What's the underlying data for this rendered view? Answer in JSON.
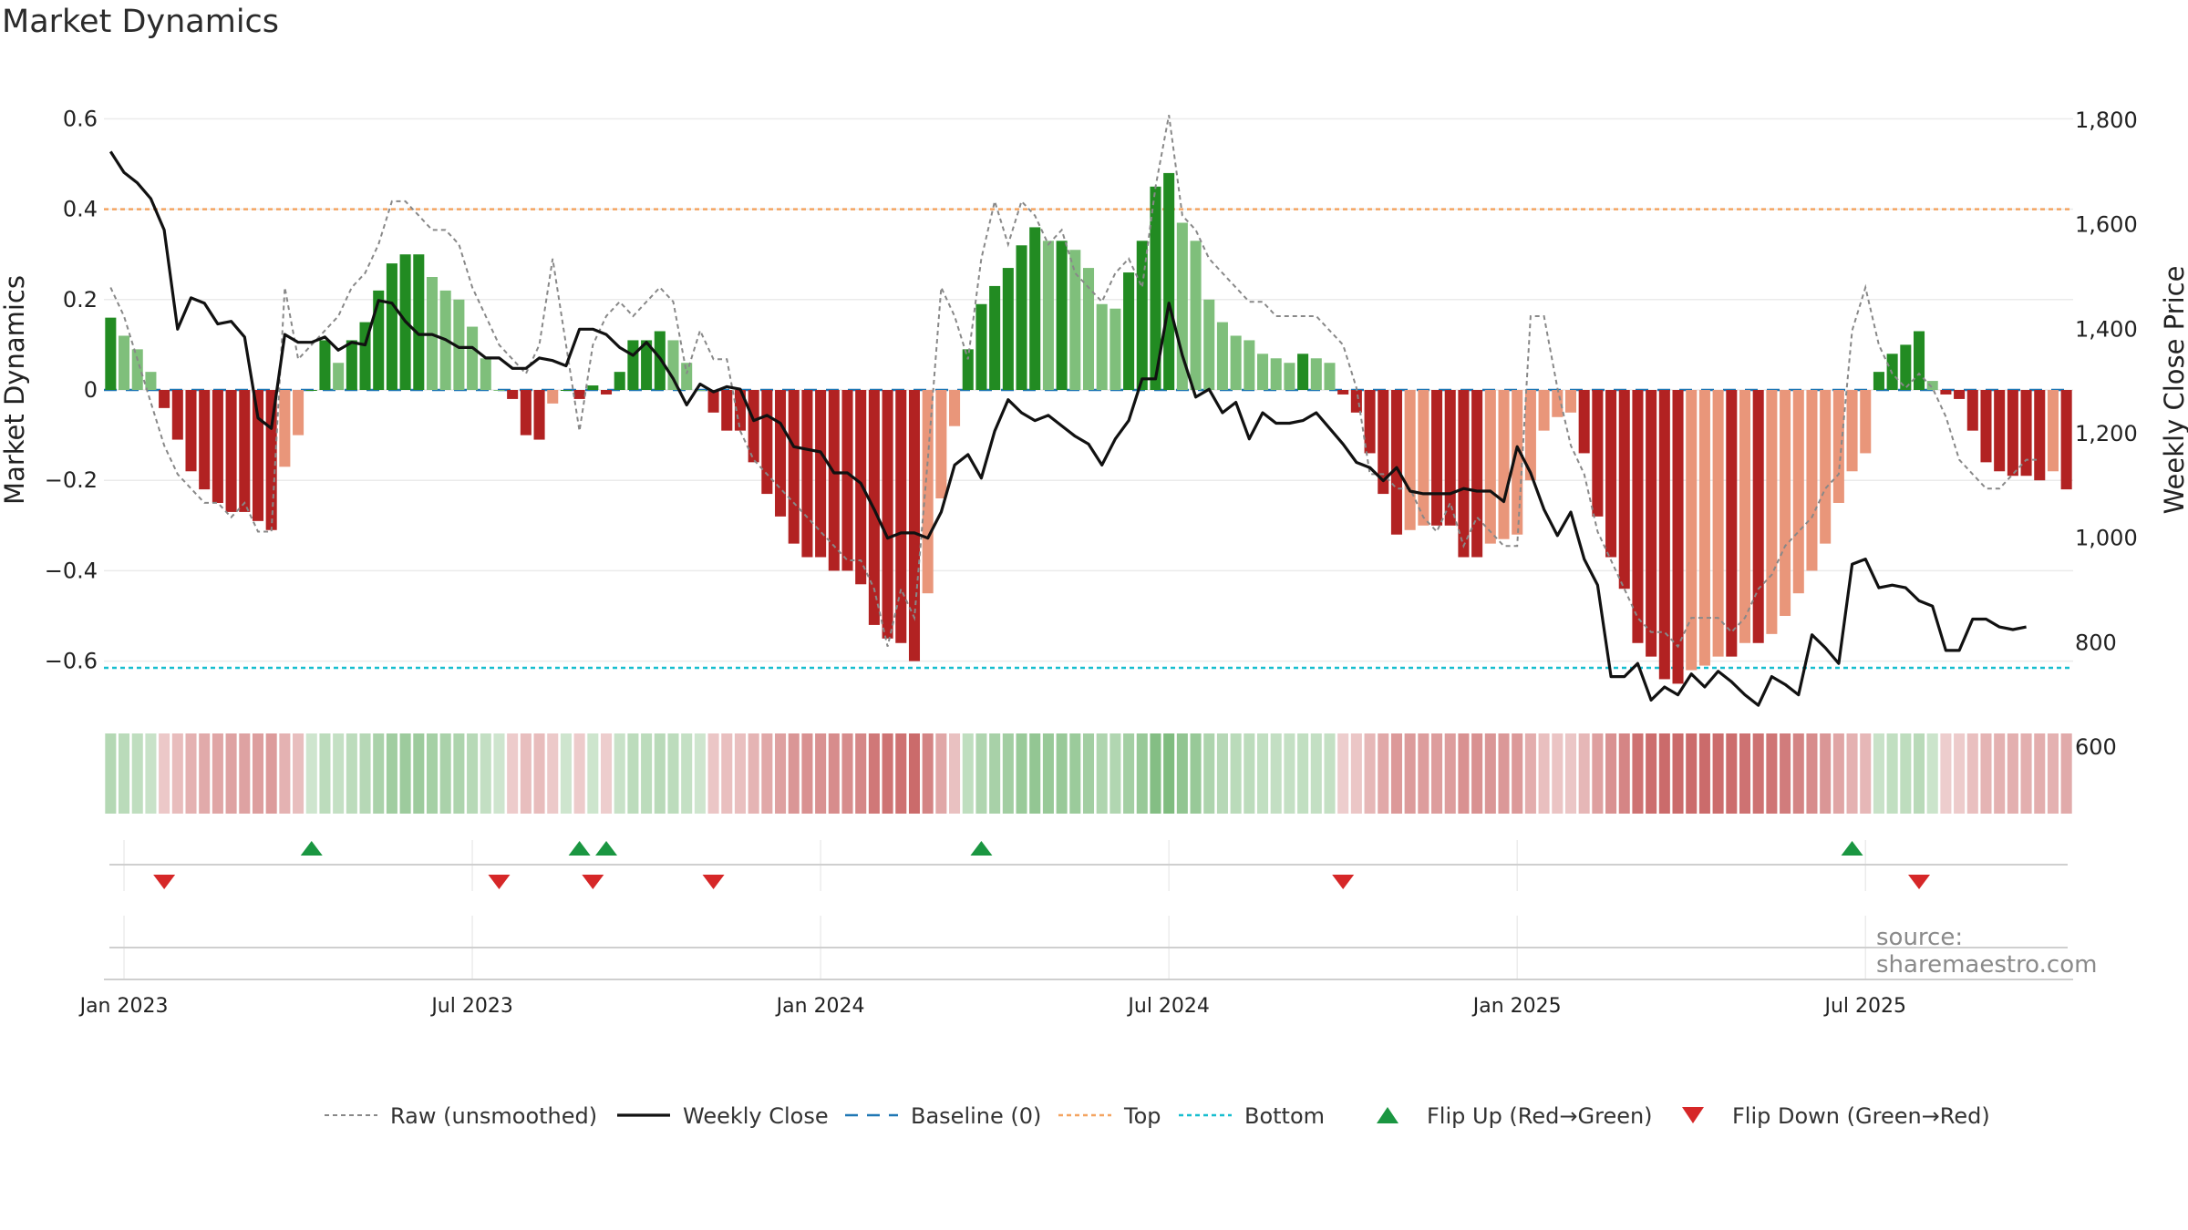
{
  "title": "Market Dynamics",
  "source": "source: sharemaestro.com",
  "chart_data": {
    "type": "bar",
    "title": "Market Dynamics",
    "ylabel": "Market Dynamics",
    "y2label": "Weekly Close Price",
    "ylim": [
      -0.7,
      0.7
    ],
    "y2lim": [
      600,
      1800
    ],
    "yticks": [
      {
        "v": 0.6,
        "label": "0.6"
      },
      {
        "v": 0.4,
        "label": "0.4"
      },
      {
        "v": 0.2,
        "label": "0.2"
      },
      {
        "v": 0,
        "label": "0"
      },
      {
        "v": -0.2,
        "label": "−0.2"
      },
      {
        "v": -0.4,
        "label": "−0.4"
      },
      {
        "v": -0.6,
        "label": "−0.6"
      }
    ],
    "y2ticks": [
      {
        "v": 1800,
        "label": "1,800"
      },
      {
        "v": 1600,
        "label": "1,600"
      },
      {
        "v": 1400,
        "label": "1,400"
      },
      {
        "v": 1200,
        "label": "1,200"
      },
      {
        "v": 1000,
        "label": "1,000"
      },
      {
        "v": 800,
        "label": "800"
      },
      {
        "v": 600,
        "label": "600"
      }
    ],
    "xticks": [
      {
        "i": 1,
        "label": "Jan 2023"
      },
      {
        "i": 27,
        "label": "Jul 2023"
      },
      {
        "i": 53,
        "label": "Jan 2024"
      },
      {
        "i": 79,
        "label": "Jul 2024"
      },
      {
        "i": 105,
        "label": "Jan 2025"
      },
      {
        "i": 131,
        "label": "Jul 2025"
      }
    ],
    "start_week": "2022-12-26",
    "top_level": 0.4,
    "bottom_level": -0.615,
    "grid": true,
    "legend_position": "bottom-center",
    "bars": [
      0.16,
      0.12,
      0.09,
      0.04,
      -0.04,
      -0.11,
      -0.18,
      -0.22,
      -0.25,
      -0.27,
      -0.27,
      -0.29,
      -0.31,
      -0.17,
      -0.1,
      0.0,
      0.11,
      0.06,
      0.11,
      0.15,
      0.22,
      0.28,
      0.3,
      0.3,
      0.25,
      0.22,
      0.2,
      0.14,
      0.07,
      0.0,
      -0.02,
      -0.1,
      -0.11,
      -0.03,
      0.0,
      -0.02,
      0.01,
      -0.01,
      0.04,
      0.11,
      0.11,
      0.13,
      0.11,
      0.06,
      0.0,
      -0.05,
      -0.09,
      -0.09,
      -0.16,
      -0.23,
      -0.28,
      -0.34,
      -0.37,
      -0.37,
      -0.4,
      -0.4,
      -0.43,
      -0.52,
      -0.55,
      -0.56,
      -0.6,
      -0.45,
      -0.24,
      -0.08,
      0.09,
      0.19,
      0.23,
      0.27,
      0.32,
      0.36,
      0.33,
      0.33,
      0.31,
      0.27,
      0.19,
      0.18,
      0.26,
      0.33,
      0.45,
      0.48,
      0.37,
      0.33,
      0.2,
      0.15,
      0.12,
      0.11,
      0.08,
      0.07,
      0.06,
      0.08,
      0.07,
      0.06,
      -0.01,
      -0.05,
      -0.14,
      -0.23,
      -0.32,
      -0.31,
      -0.3,
      -0.3,
      -0.3,
      -0.37,
      -0.37,
      -0.34,
      -0.33,
      -0.32,
      -0.2,
      -0.09,
      -0.06,
      -0.05,
      -0.14,
      -0.28,
      -0.37,
      -0.44,
      -0.56,
      -0.59,
      -0.64,
      -0.65,
      -0.62,
      -0.61,
      -0.59,
      -0.59,
      -0.56,
      -0.56,
      -0.54,
      -0.5,
      -0.45,
      -0.4,
      -0.34,
      -0.25,
      -0.18,
      -0.14,
      0.04,
      0.08,
      0.1,
      0.13,
      0.02,
      -0.01,
      -0.02,
      -0.09,
      -0.16,
      -0.18,
      -0.19,
      -0.19,
      -0.2,
      -0.18,
      -0.22
    ],
    "weekly_close": [
      1740,
      1700,
      1680,
      1650,
      1590,
      1400,
      1460,
      1450,
      1410,
      1415,
      1385,
      1230,
      1210,
      1390,
      1375,
      1375,
      1385,
      1360,
      1375,
      1370,
      1455,
      1450,
      1415,
      1390,
      1390,
      1380,
      1365,
      1365,
      1345,
      1345,
      1325,
      1325,
      1345,
      1340,
      1330,
      1400,
      1400,
      1390,
      1365,
      1350,
      1375,
      1345,
      1305,
      1255,
      1295,
      1280,
      1290,
      1285,
      1225,
      1235,
      1220,
      1175,
      1170,
      1165,
      1125,
      1125,
      1105,
      1055,
      1000,
      1010,
      1010,
      1000,
      1050,
      1140,
      1160,
      1115,
      1205,
      1265,
      1240,
      1225,
      1235,
      1215,
      1195,
      1180,
      1140,
      1190,
      1225,
      1305,
      1305,
      1450,
      1350,
      1270,
      1285,
      1240,
      1260,
      1190,
      1240,
      1220,
      1220,
      1225,
      1240,
      1210,
      1180,
      1145,
      1135,
      1110,
      1135,
      1090,
      1085,
      1085,
      1085,
      1095,
      1090,
      1090,
      1070,
      1175,
      1125,
      1055,
      1005,
      1050,
      960,
      910,
      735,
      735,
      760,
      690,
      715,
      700,
      740,
      715,
      745,
      725,
      700,
      680,
      735,
      720,
      700,
      815,
      790,
      760,
      950,
      960,
      905,
      910,
      905,
      880,
      870,
      785,
      785,
      845,
      845,
      830,
      825,
      830
    ],
    "raw": [
      1.6,
      1.5,
      1.35,
      1.2,
      1.05,
      0.95,
      0.9,
      0.85,
      0.85,
      0.8,
      0.85,
      0.75,
      0.75,
      1.6,
      1.35,
      1.4,
      1.45,
      1.5,
      1.6,
      1.65,
      1.75,
      1.9,
      1.9,
      1.85,
      1.8,
      1.8,
      1.75,
      1.6,
      1.5,
      1.4,
      1.35,
      1.3,
      1.4,
      1.7,
      1.4,
      1.1,
      1.4,
      1.5,
      1.55,
      1.5,
      1.55,
      1.6,
      1.55,
      1.3,
      1.45,
      1.35,
      1.35,
      1.1,
      1.0,
      0.95,
      0.9,
      0.85,
      0.8,
      0.75,
      0.7,
      0.65,
      0.65,
      0.55,
      0.35,
      0.55,
      0.45,
      1.0,
      1.6,
      1.5,
      1.35,
      1.7,
      1.9,
      1.75,
      1.9,
      1.85,
      1.75,
      1.8,
      1.65,
      1.6,
      1.55,
      1.65,
      1.7,
      1.6,
      1.95,
      2.2,
      1.85,
      1.8,
      1.7,
      1.65,
      1.6,
      1.55,
      1.55,
      1.5,
      1.5,
      1.5,
      1.5,
      1.45,
      1.4,
      1.25,
      0.95,
      0.95,
      0.9,
      0.9,
      0.8,
      0.75,
      0.85,
      0.7,
      0.8,
      0.75,
      0.7,
      0.7,
      1.5,
      1.5,
      1.25,
      1.05,
      0.95,
      0.75,
      0.65,
      0.55,
      0.45,
      0.4,
      0.4,
      0.35,
      0.45,
      0.45,
      0.45,
      0.4,
      0.45,
      0.55,
      0.6,
      0.7,
      0.75,
      0.8,
      0.9,
      0.95,
      1.45,
      1.6,
      1.4,
      1.3,
      1.25,
      1.3,
      1.25,
      1.15,
      1.0,
      0.95,
      0.9,
      0.9,
      0.95,
      1.0,
      1.0
    ],
    "flips_up": [
      15,
      35,
      37,
      65,
      130
    ],
    "flips_down": [
      4,
      29,
      36,
      45,
      92,
      135
    ],
    "legend": [
      {
        "key": "raw",
        "label": "Raw (unsmoothed)"
      },
      {
        "key": "close",
        "label": "Weekly Close"
      },
      {
        "key": "baseline",
        "label": "Baseline (0)"
      },
      {
        "key": "top",
        "label": "Top"
      },
      {
        "key": "bottom",
        "label": "Bottom"
      },
      {
        "key": "up",
        "label": "Flip Up (Red→Green)"
      },
      {
        "key": "down",
        "label": "Flip Down (Green→Red)"
      }
    ],
    "colors": {
      "green_strong": "#228b22",
      "green_light": "#7fbf7b",
      "red_strong": "#b22222",
      "red_light": "#e9967a",
      "close_line": "#111111",
      "raw_line": "#888888",
      "baseline": "#1f77b4",
      "top": "#f4a460",
      "bottom": "#17becf",
      "flip_up": "#1a9641",
      "flip_down": "#d62728"
    }
  }
}
